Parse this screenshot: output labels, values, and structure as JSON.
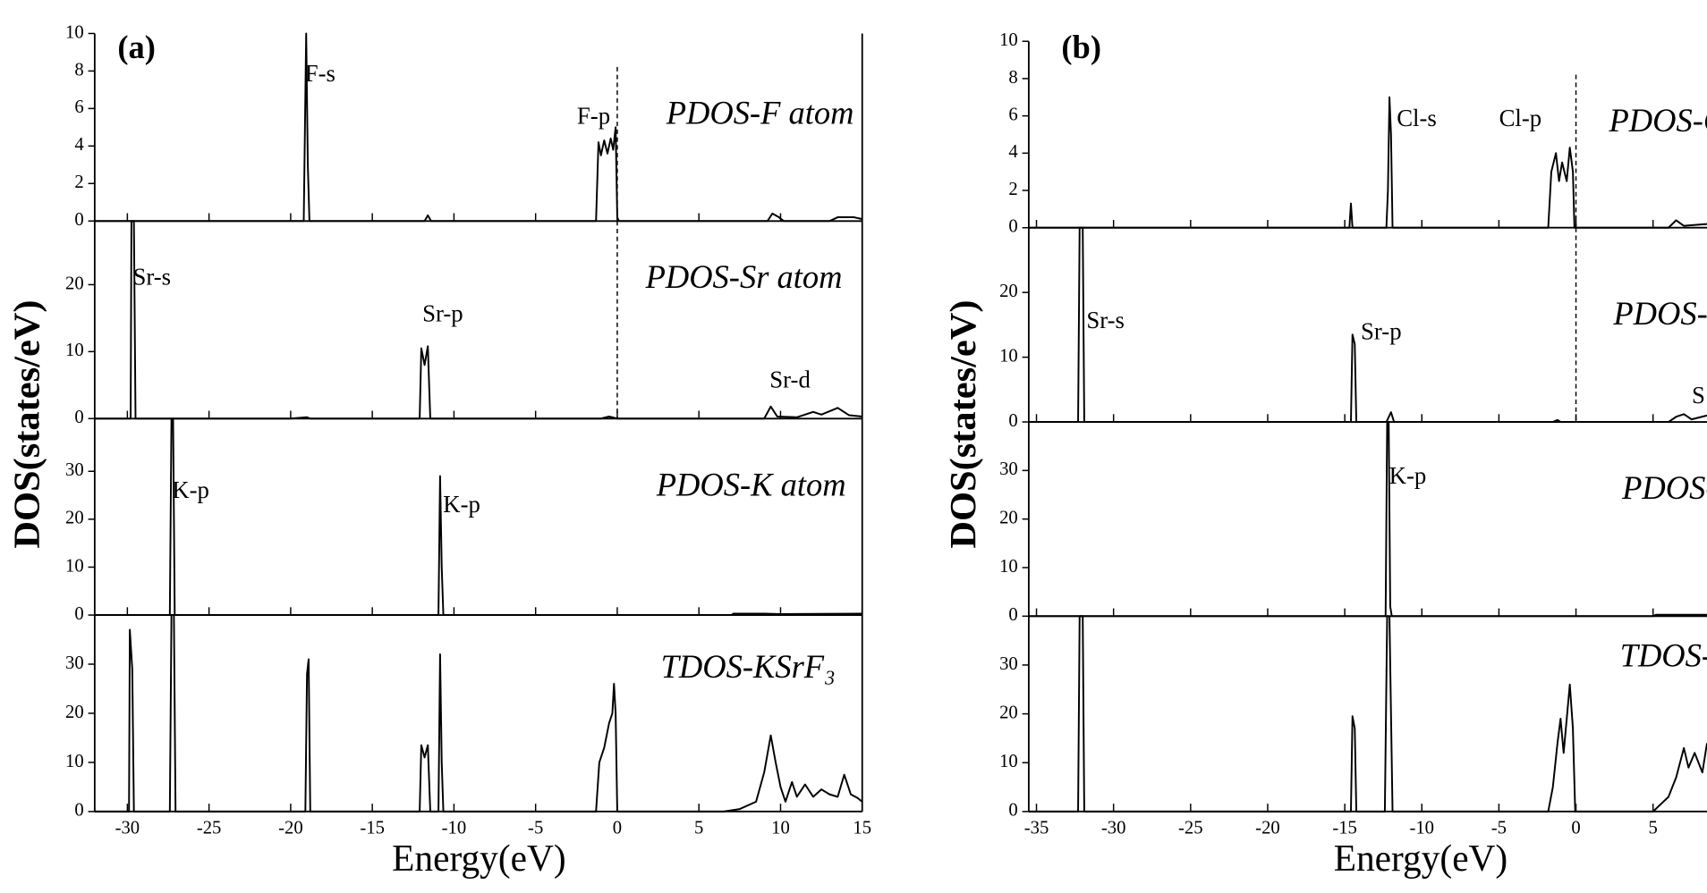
{
  "chart_data": [
    {
      "type": "line",
      "panel_label": "(a)",
      "xlabel": "Energy(eV)",
      "ylabel": "DOS(states/eV)",
      "xlim": [
        -32,
        15
      ],
      "xticks": [
        -30,
        -25,
        -20,
        -15,
        -10,
        -5,
        0,
        5,
        10,
        15
      ],
      "color": "#000000",
      "subplots": [
        {
          "title": "PDOS-F atom",
          "annotations": [
            "F-s",
            "F-p"
          ],
          "ylim": [
            0,
            10
          ],
          "yticks": [
            0,
            2,
            4,
            6,
            8,
            10
          ],
          "x": [
            -32,
            -19.2,
            -19.05,
            -18.95,
            -18.85,
            -11.8,
            -11.6,
            -11.4,
            -1.3,
            -1.15,
            -1.0,
            -0.8,
            -0.6,
            -0.4,
            -0.25,
            -0.1,
            0,
            0.1,
            9.2,
            9.5,
            9.9,
            10.2,
            13,
            13.5,
            14.5,
            15
          ],
          "values": [
            0,
            0,
            10,
            3,
            0,
            0,
            0.3,
            0,
            0,
            4.2,
            3.5,
            4.3,
            3.6,
            4.4,
            3.8,
            5,
            0.2,
            0,
            0,
            0.4,
            0.2,
            0,
            0,
            0.2,
            0.2,
            0.1
          ]
        },
        {
          "title": "PDOS-Sr atom",
          "annotations": [
            "Sr-s",
            "Sr-p",
            "Sr-d"
          ],
          "ylim": [
            0,
            29.5
          ],
          "yticks": [
            0,
            10,
            20
          ],
          "x": [
            -32,
            -29.8,
            -29.75,
            -29.6,
            -29.5,
            -20,
            -19,
            -18.8,
            -12.1,
            -12.0,
            -11.8,
            -11.6,
            -11.45,
            -1,
            -0.5,
            0,
            9,
            9.4,
            9.8,
            11,
            12,
            12.5,
            13.5,
            14.2,
            15
          ],
          "values": [
            0,
            0,
            29.5,
            29.5,
            0,
            0,
            0.2,
            0,
            0,
            10.5,
            8,
            10.8,
            0,
            0,
            0.3,
            0,
            0,
            1.8,
            0.3,
            0.2,
            1.0,
            0.6,
            1.6,
            0.5,
            0.3
          ]
        },
        {
          "title": "PDOS-K atom",
          "annotations": [
            "K-p",
            "K-p"
          ],
          "ylim": [
            0,
            41
          ],
          "yticks": [
            0,
            10,
            20,
            30
          ],
          "x": [
            -32,
            -27.4,
            -27.3,
            -27.2,
            -27.1,
            -10.95,
            -10.85,
            -10.75,
            -10.65,
            7,
            7.1,
            9,
            10,
            15
          ],
          "values": [
            0,
            0,
            41,
            41,
            0,
            0,
            29,
            10,
            0,
            0,
            0.3,
            0.3,
            0.2,
            0.3
          ]
        },
        {
          "title": "TDOS-KSrF₃",
          "annotations": [],
          "ylim": [
            0,
            40
          ],
          "yticks": [
            0,
            10,
            20,
            30
          ],
          "x": [
            -32,
            -29.9,
            -29.85,
            -29.7,
            -29.6,
            -27.4,
            -27.3,
            -27.15,
            -27.05,
            -19.1,
            -19,
            -18.9,
            -18.8,
            -12.1,
            -12,
            -11.8,
            -11.6,
            -11.45,
            -10.95,
            -10.85,
            -10.75,
            -10.65,
            -1.3,
            -1.1,
            -0.8,
            -0.5,
            -0.3,
            -0.2,
            -0.1,
            0,
            6.5,
            7.5,
            8.5,
            9,
            9.4,
            9.7,
            10,
            10.3,
            10.7,
            11,
            11.5,
            12,
            12.5,
            13,
            13.5,
            13.9,
            14.3,
            14.7,
            15
          ],
          "values": [
            0,
            0,
            37,
            29,
            0,
            0,
            40,
            40,
            0,
            0,
            28,
            31,
            0,
            0,
            13.5,
            11,
            13.5,
            0,
            0,
            32,
            10,
            0,
            0,
            10,
            13,
            18,
            20,
            26,
            20,
            0,
            0,
            0.5,
            2,
            8,
            15.5,
            10,
            5,
            2,
            6,
            3,
            5.5,
            3,
            4.5,
            3.5,
            3,
            7.5,
            3.5,
            2.8,
            2
          ]
        }
      ]
    },
    {
      "type": "line",
      "panel_label": "(b)",
      "xlabel": "Energy(eV)",
      "ylabel": "DOS(states/eV)",
      "xlim": [
        -35.5,
        8.5
      ],
      "xticks": [
        -35,
        -30,
        -25,
        -20,
        -15,
        -10,
        -5,
        0,
        5
      ],
      "color": "#000000",
      "subplots": [
        {
          "title": "PDOS-C",
          "annotations": [
            "Cl-s",
            "Cl-p"
          ],
          "ylim": [
            0,
            10
          ],
          "yticks": [
            0,
            2,
            4,
            6,
            8,
            10
          ],
          "x": [
            -35.5,
            -14.7,
            -14.6,
            -14.5,
            -12.3,
            -12.2,
            -12.1,
            -12.0,
            -11.9,
            -1.8,
            -1.6,
            -1.3,
            -1.1,
            -0.9,
            -0.6,
            -0.4,
            -0.2,
            -0.1,
            6,
            6.5,
            7,
            8.5
          ],
          "values": [
            0,
            0,
            1.3,
            0,
            0,
            2,
            7,
            5,
            0,
            0,
            3,
            4,
            2.5,
            3.5,
            2.5,
            4.3,
            3,
            0,
            0,
            0.4,
            0.1,
            0.2
          ]
        },
        {
          "title": "PDOS-Sr",
          "annotations": [
            "Sr-s",
            "Sr-p",
            "S"
          ],
          "ylim": [
            0,
            30
          ],
          "yticks": [
            0,
            10,
            20
          ],
          "x": [
            -35.5,
            -32.3,
            -32.2,
            -32.0,
            -31.9,
            -14.6,
            -14.5,
            -14.35,
            -14.25,
            -12.3,
            -12,
            -11.8,
            -1.5,
            -1.2,
            -1,
            6,
            6.5,
            7,
            7.5,
            8.5
          ],
          "values": [
            0,
            0,
            30,
            30,
            0,
            0,
            13.5,
            12,
            0,
            0,
            1.5,
            0,
            0,
            0.3,
            0,
            0,
            0.8,
            1.2,
            0.4,
            1
          ]
        },
        {
          "title": "PDOS-K",
          "annotations": [
            "K-p"
          ],
          "ylim": [
            0,
            40
          ],
          "yticks": [
            0,
            10,
            20,
            30
          ],
          "x": [
            -35.5,
            -12.35,
            -12.25,
            -12.15,
            -12.05,
            -11.95,
            5,
            5.2,
            8.5
          ],
          "values": [
            0,
            0,
            40,
            40,
            2,
            0,
            0,
            0.3,
            0.3
          ]
        },
        {
          "title": "TDOS-K",
          "annotations": [],
          "ylim": [
            0,
            40
          ],
          "yticks": [
            0,
            10,
            20,
            30
          ],
          "x": [
            -35.5,
            -32.3,
            -32.2,
            -32.0,
            -31.9,
            -14.6,
            -14.5,
            -14.35,
            -14.25,
            -12.4,
            -12.25,
            -12.1,
            -11.9,
            -1.8,
            -1.5,
            -1.2,
            -1,
            -0.8,
            -0.6,
            -0.4,
            -0.2,
            -0.05,
            5,
            6,
            6.5,
            7,
            7.3,
            7.7,
            8.2,
            8.5
          ],
          "values": [
            0,
            0,
            40,
            40,
            0,
            0,
            19.5,
            17,
            0,
            0,
            40,
            40,
            0,
            0,
            5,
            14,
            19,
            12,
            19,
            26,
            17,
            0,
            0,
            3,
            7,
            13,
            9,
            12,
            8,
            14
          ]
        }
      ]
    }
  ]
}
